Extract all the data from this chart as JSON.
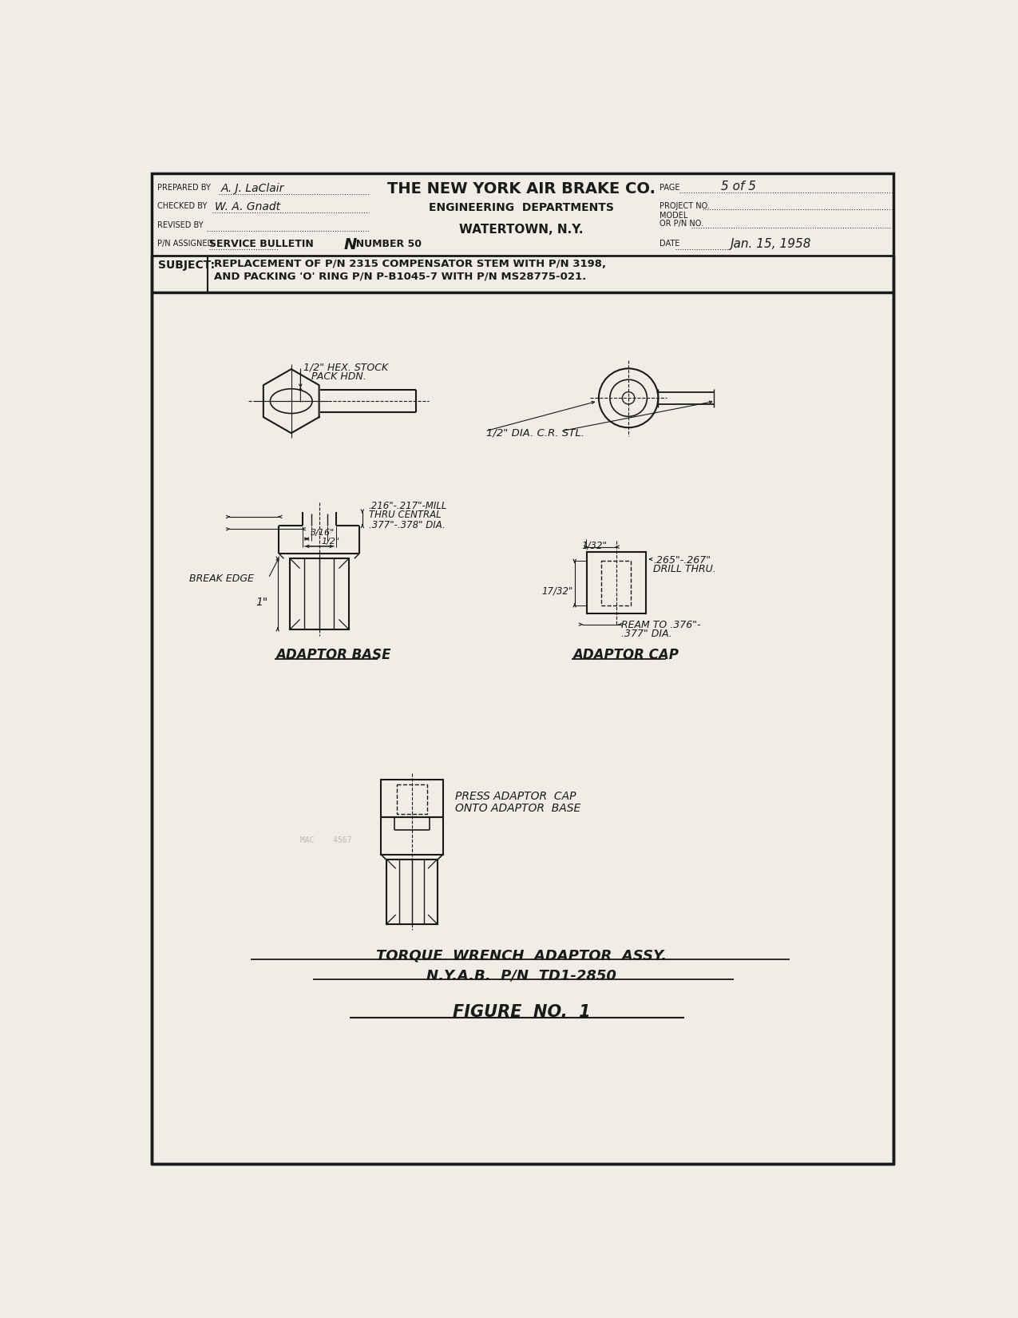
{
  "bg_color": "#f0ede6",
  "line_color": "#1a1a1a",
  "title": "THE NEW YORK AIR BRAKE CO.",
  "subtitle1": "ENGINEERING  DEPARTMENTS",
  "subtitle2": "WATERTOWN, N.Y.",
  "bulletin": "SERVICE BULLETIN",
  "number": "NUMBER 50",
  "page_label": "PAGE",
  "page": "5 of 5",
  "date_label": "DATE",
  "date": "Jan. 15, 1958",
  "prepared_label": "PREPARED BY",
  "prepared_by": "A. J. LaClair",
  "checked_label": "CHECKED BY",
  "checked_by": "W. A. Gnadt",
  "revised_label": "REVISED BY",
  "pn_label": "P/N ASSIGNED",
  "project_label": "PROJECT NO.",
  "model_label": "MODEL",
  "orpn_label": "OR P/N NO.",
  "subject_label": "SUBJECT:",
  "subject_line1": "REPLACEMENT OF P/N 2315 COMPENSATOR STEM WITH P/N 3198,",
  "subject_line2": "AND PACKING 'O' RING P/N P-B1045-7 WITH P/N MS28775-021.",
  "adaptor_base_label": "ADAPTOR BASE",
  "adaptor_cap_label": "ADAPTOR CAP",
  "torque_label1": "TORQUE  WRENCH  ADAPTOR  ASSY.",
  "torque_label2": "N.Y.A.B.  P/N  TD1-2850",
  "figure_label": "FIGURE  NO.  1",
  "hex_label1": "1/2\" HEX. STOCK",
  "hex_label2": "PACK HDN.",
  "dia_label": "1/2\" DIA. C.R. STL.",
  "mill_label1": ".216\"-.217\"-MILL",
  "mill_label2": "THRU CENTRAL",
  "mill_label3": ".377\"-.378\" DIA.",
  "break_edge": "BREAK EDGE",
  "drill_label1": ".265\"-.267\"",
  "drill_label2": "DRILL THRU.",
  "ream_label1": "REAM TO .376\"-",
  "ream_label2": ".377\" DIA.",
  "press_label1": "PRESS ADAPTOR  CAP",
  "press_label2": "ONTO ADAPTOR  BASE"
}
